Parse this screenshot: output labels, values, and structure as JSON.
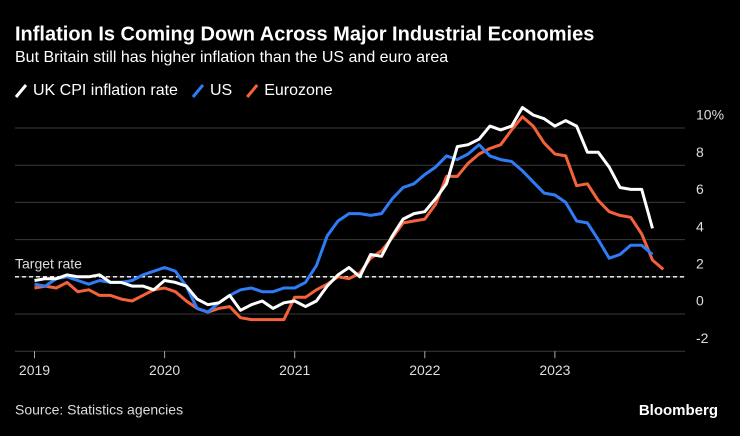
{
  "chart_data": {
    "type": "line",
    "title": "Inflation Is Coming Down Across Major Industrial Economies",
    "subtitle": "But Britain still has higher inflation than the US and euro area",
    "source": "Source: Statistics agencies",
    "brand": "Bloomberg",
    "target": {
      "value": 2,
      "label": "Target rate"
    },
    "x": [
      2019,
      2019.083,
      2019.167,
      2019.25,
      2019.333,
      2019.417,
      2019.5,
      2019.583,
      2019.667,
      2019.75,
      2019.833,
      2019.917,
      2020,
      2020.083,
      2020.167,
      2020.25,
      2020.333,
      2020.417,
      2020.5,
      2020.583,
      2020.667,
      2020.75,
      2020.833,
      2020.917,
      2021,
      2021.083,
      2021.167,
      2021.25,
      2021.333,
      2021.417,
      2021.5,
      2021.583,
      2021.667,
      2021.75,
      2021.833,
      2021.917,
      2022,
      2022.083,
      2022.167,
      2022.25,
      2022.333,
      2022.417,
      2022.5,
      2022.583,
      2022.667,
      2022.75,
      2022.833,
      2022.917,
      2023,
      2023.083,
      2023.167,
      2023.25,
      2023.333,
      2023.417,
      2023.5,
      2023.583,
      2023.667,
      2023.75,
      2023.833
    ],
    "series": [
      {
        "name": "UK CPI inflation rate",
        "color": "#ffffff",
        "values": [
          1.8,
          1.9,
          1.9,
          2.1,
          2.0,
          2.0,
          2.1,
          1.7,
          1.7,
          1.5,
          1.5,
          1.3,
          1.8,
          1.7,
          1.5,
          0.8,
          0.5,
          0.6,
          1.0,
          0.2,
          0.5,
          0.7,
          0.3,
          0.6,
          0.7,
          0.4,
          0.7,
          1.5,
          2.1,
          2.5,
          2.0,
          3.2,
          3.1,
          4.2,
          5.1,
          5.4,
          5.5,
          6.2,
          7.0,
          9.0,
          9.1,
          9.4,
          10.1,
          9.9,
          10.1,
          11.1,
          10.7,
          10.5,
          10.1,
          10.4,
          10.1,
          8.7,
          8.7,
          7.9,
          6.8,
          6.7,
          6.7,
          4.6,
          null
        ]
      },
      {
        "name": "US",
        "color": "#2f7cf6",
        "values": [
          1.6,
          1.5,
          1.9,
          2.0,
          1.8,
          1.6,
          1.8,
          1.7,
          1.7,
          1.8,
          2.1,
          2.3,
          2.5,
          2.3,
          1.5,
          0.3,
          0.1,
          0.6,
          1.0,
          1.3,
          1.4,
          1.2,
          1.2,
          1.4,
          1.4,
          1.7,
          2.6,
          4.2,
          5.0,
          5.4,
          5.4,
          5.3,
          5.4,
          6.2,
          6.8,
          7.0,
          7.5,
          7.9,
          8.5,
          8.3,
          8.6,
          9.1,
          8.5,
          8.3,
          8.2,
          7.7,
          7.1,
          6.5,
          6.4,
          6.0,
          5.0,
          4.9,
          4.0,
          3.0,
          3.2,
          3.7,
          3.7,
          3.2,
          null
        ]
      },
      {
        "name": "Eurozone",
        "color": "#f4623a",
        "values": [
          1.4,
          1.5,
          1.4,
          1.7,
          1.2,
          1.3,
          1.0,
          1.0,
          0.8,
          0.7,
          1.0,
          1.3,
          1.4,
          1.2,
          0.7,
          0.3,
          0.1,
          0.3,
          0.4,
          -0.2,
          -0.3,
          -0.3,
          -0.3,
          -0.3,
          0.9,
          0.9,
          1.3,
          1.6,
          2.0,
          1.9,
          2.2,
          3.0,
          3.4,
          4.1,
          4.9,
          5.0,
          5.1,
          5.9,
          7.4,
          7.4,
          8.1,
          8.6,
          8.9,
          9.1,
          9.9,
          10.6,
          10.1,
          9.2,
          8.6,
          8.5,
          6.9,
          7.0,
          6.1,
          5.5,
          5.3,
          5.2,
          4.3,
          2.9,
          2.4
        ]
      }
    ],
    "xlim": [
      2018.85,
      2024.0
    ],
    "xticks": [
      2019,
      2020,
      2021,
      2022,
      2023
    ],
    "ylim": [
      -2,
      11
    ],
    "yticks": [
      {
        "value": 10,
        "label": "10%"
      },
      8,
      6,
      4,
      2,
      0,
      -2
    ],
    "grid": true
  }
}
